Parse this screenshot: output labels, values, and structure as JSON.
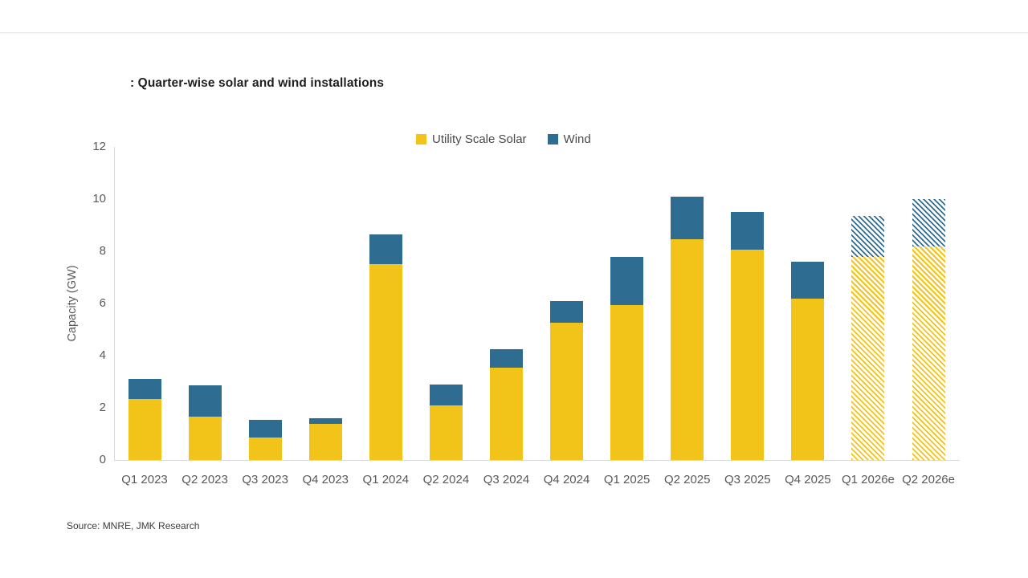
{
  "header": {
    "title_display": ": Quarter-wise solar and wind installations"
  },
  "chart_data": {
    "type": "bar",
    "stacked": true,
    "title": "Quarter-wise solar and wind installations",
    "ylabel": "Capacity (GW)",
    "ylim": [
      0,
      12
    ],
    "yticks": [
      0,
      2,
      4,
      6,
      8,
      10,
      12
    ],
    "grid": false,
    "legend_position": "top-center",
    "categories": [
      "Q1 2023",
      "Q2 2023",
      "Q3 2023",
      "Q4 2023",
      "Q1 2024",
      "Q2 2024",
      "Q3 2024",
      "Q4 2024",
      "Q1 2025",
      "Q2 2025",
      "Q3 2025",
      "Q4 2025",
      "Q1 2026e",
      "Q2 2026e"
    ],
    "forecast_hatched": [
      false,
      false,
      false,
      false,
      false,
      false,
      false,
      false,
      false,
      false,
      false,
      false,
      true,
      true
    ],
    "series": [
      {
        "name": "Utility Scale Solar",
        "color": "#F2C318",
        "values": [
          2.35,
          1.65,
          0.85,
          1.4,
          7.5,
          2.1,
          3.55,
          5.25,
          5.95,
          8.45,
          8.05,
          6.2,
          7.8,
          8.2
        ]
      },
      {
        "name": "Wind",
        "color": "#2F6C91",
        "values": [
          0.75,
          1.2,
          0.7,
          0.2,
          1.15,
          0.8,
          0.7,
          0.85,
          1.85,
          1.65,
          1.45,
          1.4,
          1.55,
          1.8
        ]
      }
    ],
    "totals": [
      3.1,
      2.85,
      1.55,
      1.6,
      8.65,
      2.9,
      4.25,
      6.1,
      7.8,
      10.1,
      9.5,
      7.6,
      9.35,
      10.0
    ]
  },
  "footer": {
    "source": "Source: MNRE, JMK Research"
  }
}
